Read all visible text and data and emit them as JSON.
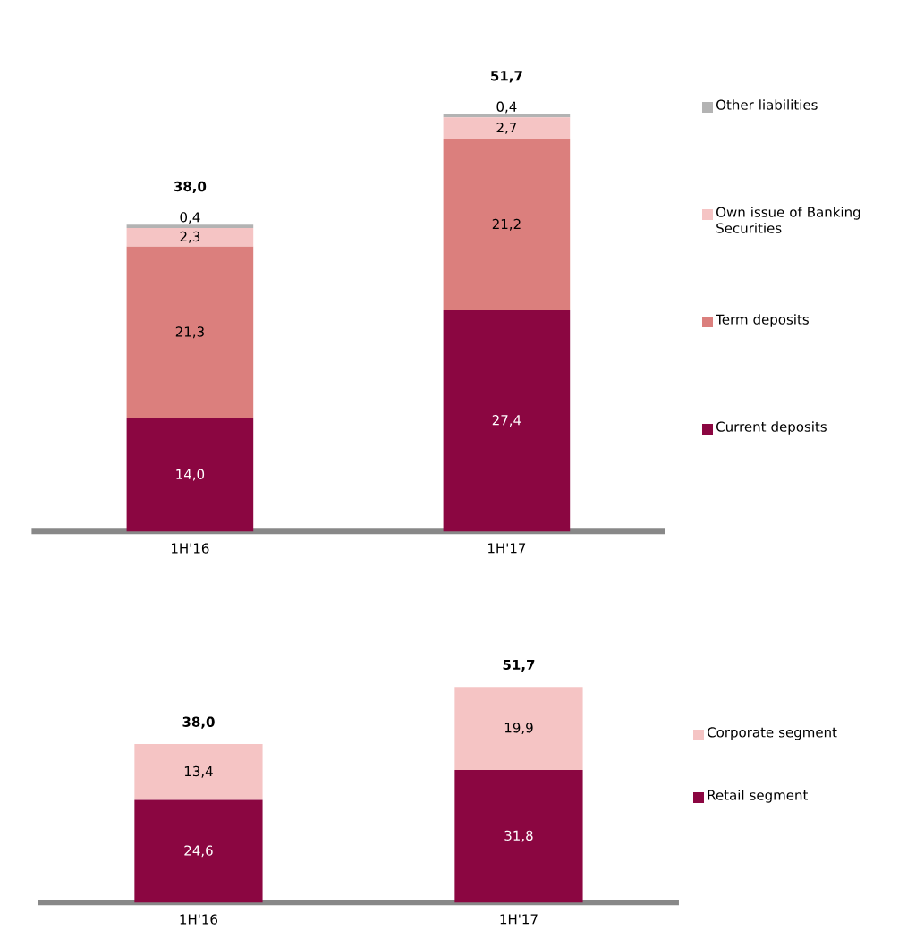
{
  "chart_data": [
    {
      "type": "bar",
      "stacked": true,
      "legend": "right",
      "categories": [
        "1H'16",
        "1H'17"
      ],
      "totals": [
        "38,0",
        "51,7"
      ],
      "series": [
        {
          "name": "Current deposits",
          "color": "#8b0641",
          "values": [
            14.0,
            27.4
          ],
          "value_labels": [
            "14,0",
            "27,4"
          ]
        },
        {
          "name": "Term deposits",
          "color": "#db7f7d",
          "values": [
            21.3,
            21.2
          ],
          "value_labels": [
            "21,3",
            "21,2"
          ]
        },
        {
          "name": "Own issue of Banking Securities",
          "color": "#f5c4c4",
          "values": [
            2.3,
            2.7
          ],
          "value_labels": [
            "2,3",
            "2,7"
          ]
        },
        {
          "name": "Other liabilities",
          "color": "#b3b3b3",
          "values": [
            0.4,
            0.4
          ],
          "value_labels": [
            "0,4",
            "0,4"
          ]
        }
      ]
    },
    {
      "type": "bar",
      "stacked": true,
      "legend": "right",
      "categories": [
        "1H'16",
        "1H'17"
      ],
      "totals": [
        "38,0",
        "51,7"
      ],
      "series": [
        {
          "name": "Retail segment",
          "color": "#8b0641",
          "values": [
            24.6,
            31.8
          ],
          "value_labels": [
            "24,6",
            "31,8"
          ]
        },
        {
          "name": "Corporate segment",
          "color": "#f5c4c4",
          "values": [
            13.4,
            19.9
          ],
          "value_labels": [
            "13,4",
            "19,9"
          ]
        }
      ]
    }
  ]
}
